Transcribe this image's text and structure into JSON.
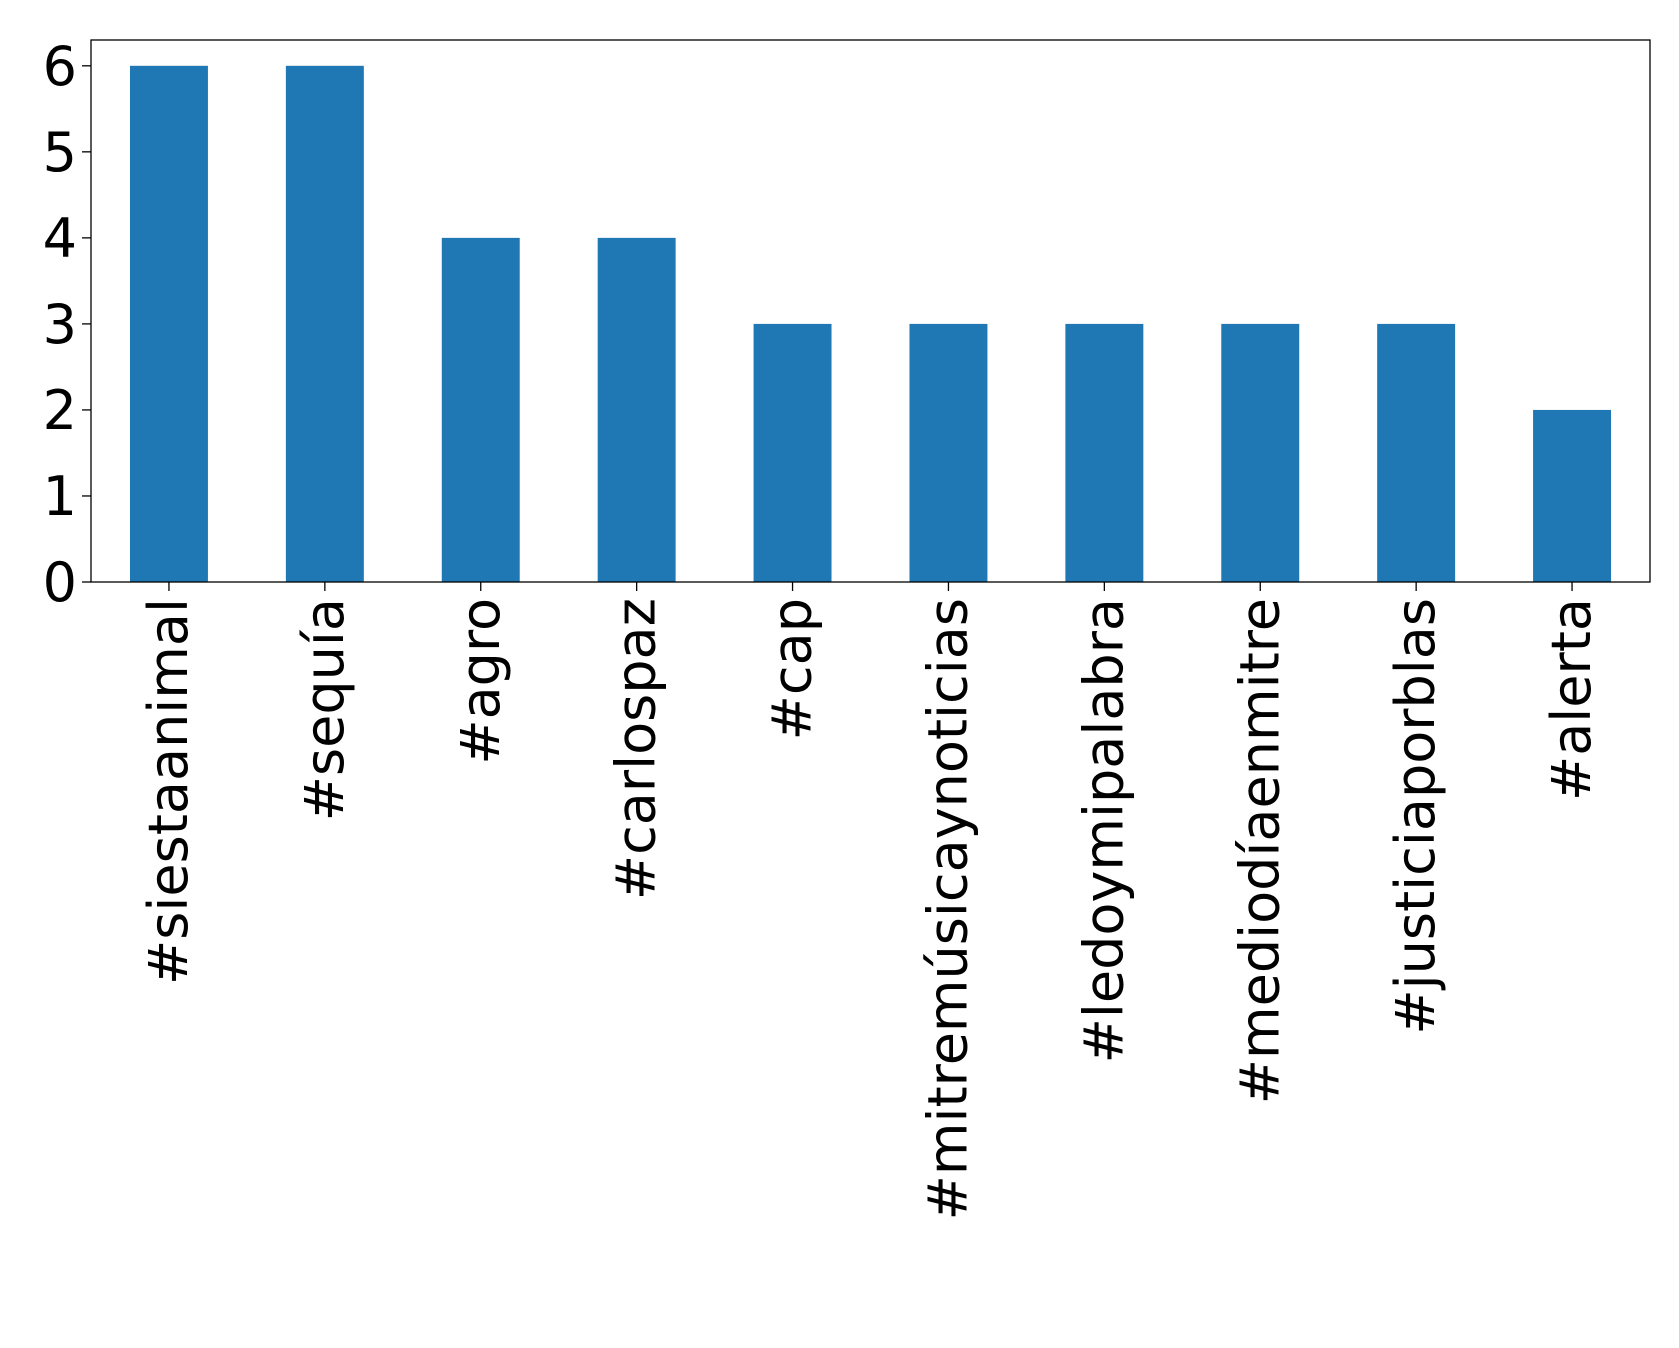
{
  "chart_data": {
    "type": "bar",
    "title": "",
    "xlabel": "",
    "ylabel": "",
    "categories": [
      "#siestaanimal",
      "#sequía",
      "#agro",
      "#carlospaz",
      "#cap",
      "#mitremúsicaynoticias",
      "#ledoymipalabra",
      "#mediodíaenmitre",
      "#justiciaporblas",
      "#alerta"
    ],
    "values": [
      6,
      6,
      4,
      4,
      3,
      3,
      3,
      3,
      3,
      2
    ],
    "ylim": [
      0,
      6.3
    ],
    "yticks": [
      0,
      1,
      2,
      3,
      4,
      5,
      6
    ],
    "grid": false,
    "legend": "none",
    "bar_color": "#1f77b4"
  }
}
